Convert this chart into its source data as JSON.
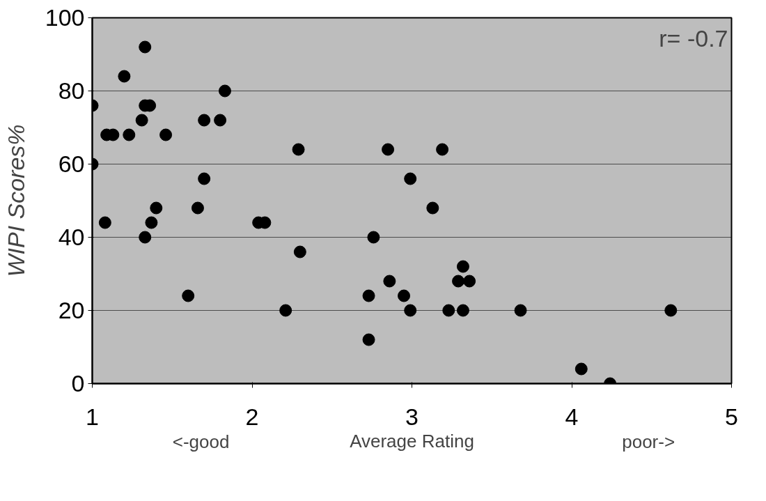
{
  "chart_data": {
    "type": "scatter",
    "xlabel": "Average Rating",
    "ylabel": "WIPI Scores%",
    "annotations": [
      "r= -0.7",
      "<-good",
      "poor->"
    ],
    "x": [
      1.33,
      1.2,
      1.83,
      1.0,
      1.33,
      1.36,
      1.31,
      1.7,
      1.8,
      1.09,
      1.13,
      1.23,
      1.46,
      2.29,
      1.0,
      1.7,
      1.4,
      1.66,
      1.08,
      1.37,
      2.04,
      2.08,
      1.33,
      2.3,
      1.6,
      2.21,
      2.85,
      3.19,
      2.99,
      3.13,
      2.76,
      3.32,
      2.86,
      3.29,
      3.36,
      2.73,
      2.95,
      2.99,
      3.23,
      3.32,
      3.68,
      2.73,
      4.62,
      4.06,
      4.24
    ],
    "series": [
      {
        "color": "#000000",
        "values": [
          92,
          84,
          80,
          76,
          76,
          76,
          72,
          72,
          72,
          68,
          68,
          68,
          68,
          64,
          60,
          56,
          48,
          48,
          44,
          44,
          44,
          44,
          40,
          36,
          24,
          20,
          64,
          64,
          56,
          48,
          40,
          32,
          28,
          28,
          28,
          24,
          24,
          20,
          20,
          20,
          20,
          12,
          20,
          4,
          0
        ]
      }
    ],
    "xlim": [
      1,
      5
    ],
    "xticks": [
      1,
      2,
      3,
      4,
      5
    ],
    "ylim": [
      0,
      100
    ],
    "yticks": [
      0,
      20,
      40,
      60,
      80,
      100
    ],
    "grid": "y",
    "marker": "circle"
  }
}
